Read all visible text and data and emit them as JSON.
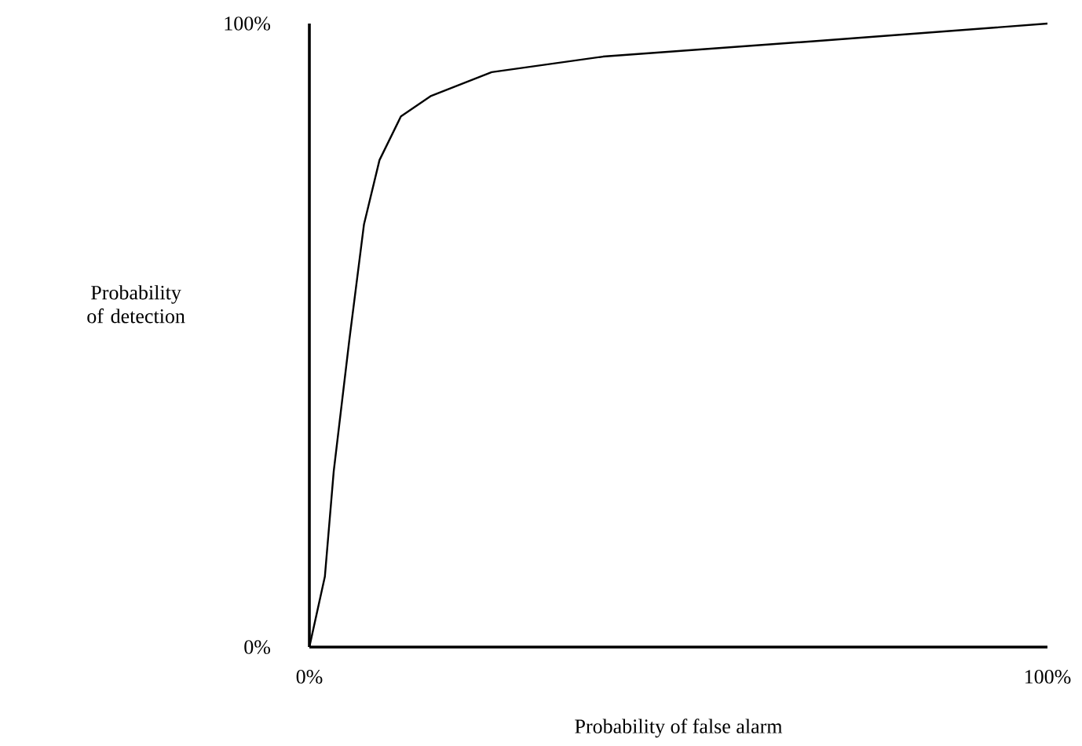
{
  "chart_data": {
    "type": "line",
    "xlabel": "Probability of false alarm",
    "ylabel": "Probability of detection",
    "x": [
      0,
      2.1,
      3.3,
      5.4,
      7.4,
      9.5,
      12.4,
      16.5,
      24.7,
      39.8,
      68.7,
      100
    ],
    "series": [
      {
        "color": "#000000",
        "values": [
          0,
          11.3,
          28.2,
          49.1,
          67.8,
          78.1,
          85.1,
          88.4,
          92.2,
          94.7,
          97.2,
          100
        ]
      }
    ],
    "xlim": [
      0,
      100
    ],
    "ylim": [
      0,
      100
    ],
    "xticks": [
      {
        "value": 0,
        "label": "0%"
      },
      {
        "value": 100,
        "label": "100%"
      }
    ],
    "yticks": [
      {
        "value": 0,
        "label": "0%"
      },
      {
        "value": 100,
        "label": "100%"
      }
    ]
  }
}
